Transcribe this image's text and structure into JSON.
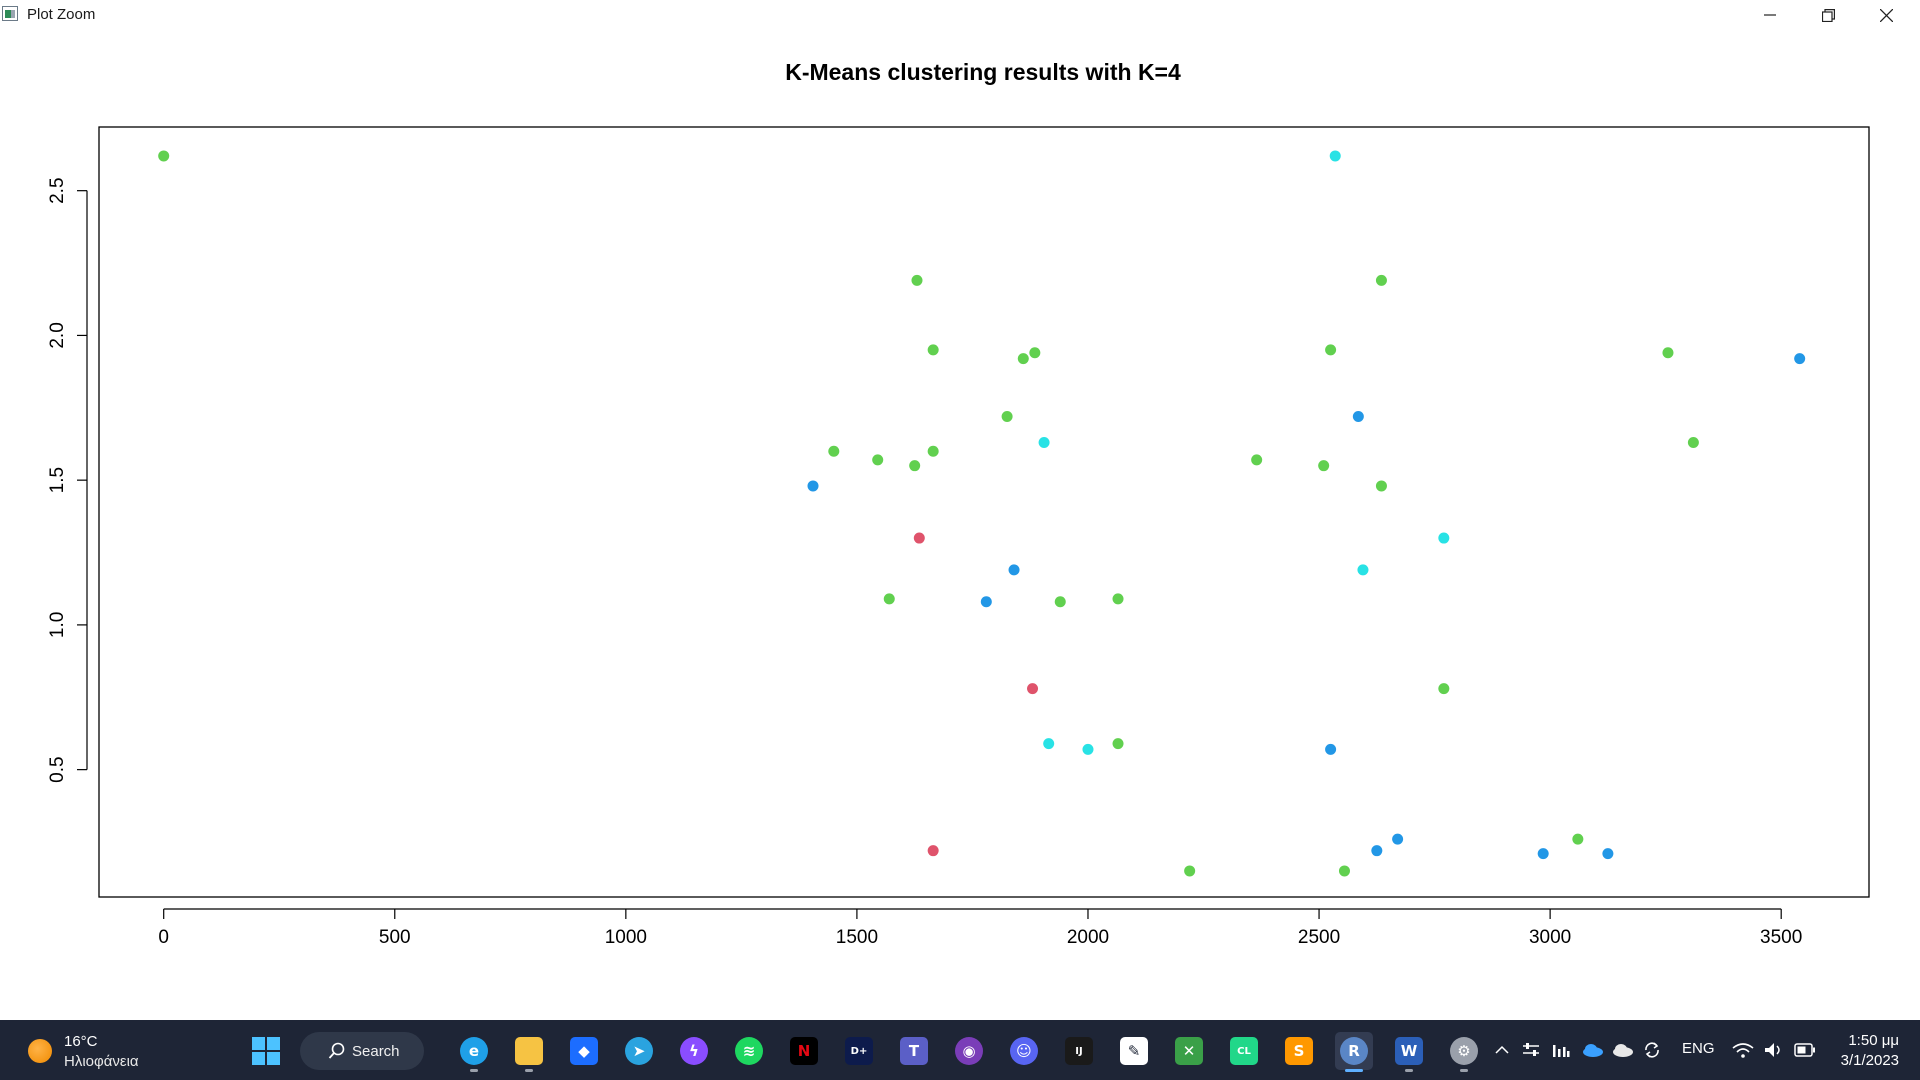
{
  "window": {
    "title": "Plot Zoom"
  },
  "chart_data": {
    "type": "scatter",
    "title": "K-Means clustering results with K=4",
    "xlabel": "",
    "ylabel": "",
    "xlim": [
      -140,
      3690
    ],
    "ylim": [
      0.06,
      2.72
    ],
    "xticks": [
      0,
      500,
      1000,
      1500,
      2000,
      2500,
      3000,
      3500
    ],
    "yticks": [
      0.5,
      1.0,
      1.5,
      2.0,
      2.5
    ],
    "xtick_labels": [
      "0",
      "500",
      "1000",
      "1500",
      "2000",
      "2500",
      "3000",
      "3500"
    ],
    "ytick_labels": [
      "0.5",
      "1.0",
      "1.5",
      "2.0",
      "2.5"
    ],
    "grid": false,
    "series": [
      {
        "cluster": 1,
        "color": "#df536b",
        "points": [
          [
            1635,
            1.3
          ],
          [
            1880,
            0.78
          ],
          [
            1665,
            0.22
          ]
        ]
      },
      {
        "cluster": 2,
        "color": "#61d04f",
        "points": [
          [
            0,
            2.62
          ],
          [
            1630,
            2.19
          ],
          [
            1665,
            1.95
          ],
          [
            1860,
            1.92
          ],
          [
            1885,
            1.94
          ],
          [
            1825,
            1.72
          ],
          [
            1450,
            1.6
          ],
          [
            1545,
            1.57
          ],
          [
            1625,
            1.55
          ],
          [
            1665,
            1.6
          ],
          [
            1570,
            1.09
          ],
          [
            1940,
            1.08
          ],
          [
            2065,
            1.09
          ],
          [
            2065,
            0.59
          ],
          [
            2220,
            0.15
          ],
          [
            2365,
            1.57
          ],
          [
            2510,
            1.55
          ],
          [
            2525,
            1.95
          ],
          [
            2635,
            2.19
          ],
          [
            2635,
            1.48
          ],
          [
            2555,
            0.15
          ],
          [
            2770,
            0.78
          ],
          [
            3060,
            0.26
          ],
          [
            3255,
            1.94
          ],
          [
            3310,
            1.63
          ]
        ]
      },
      {
        "cluster": 3,
        "color": "#2297e6",
        "points": [
          [
            1405,
            1.48
          ],
          [
            1840,
            1.19
          ],
          [
            1780,
            1.08
          ],
          [
            2585,
            1.72
          ],
          [
            2525,
            0.57
          ],
          [
            2625,
            0.22
          ],
          [
            2670,
            0.26
          ],
          [
            2985,
            0.21
          ],
          [
            3125,
            0.21
          ],
          [
            3540,
            1.92
          ]
        ]
      },
      {
        "cluster": 4,
        "color": "#28e2e5",
        "points": [
          [
            2535,
            2.62
          ],
          [
            1905,
            1.63
          ],
          [
            2595,
            1.19
          ],
          [
            2770,
            1.3
          ],
          [
            1915,
            0.59
          ],
          [
            2000,
            0.57
          ]
        ]
      }
    ]
  },
  "taskbar": {
    "weather": {
      "temp": "16°C",
      "condition": "Ηλιοφάνεια"
    },
    "search_label": "Search",
    "apps": [
      {
        "name": "edge",
        "color": "#1fa0e8",
        "glyph": "e"
      },
      {
        "name": "file-explorer",
        "color": "#f6c343",
        "glyph": ""
      },
      {
        "name": "dropbox",
        "color": "#1c6dff",
        "glyph": "◆"
      },
      {
        "name": "telegram",
        "color": "#2aa3df",
        "glyph": "➤"
      },
      {
        "name": "messenger",
        "color": "#8a4dff",
        "glyph": "ϟ"
      },
      {
        "name": "spotify",
        "color": "#1ed760",
        "glyph": "≋"
      },
      {
        "name": "netflix",
        "color": "#000000",
        "glyph": "N"
      },
      {
        "name": "disney-plus",
        "color": "#0d1b4c",
        "glyph": "D+"
      },
      {
        "name": "teams",
        "color": "#5b5fc7",
        "glyph": "T"
      },
      {
        "name": "github",
        "color": "#7a3db8",
        "glyph": "◉"
      },
      {
        "name": "discord",
        "color": "#5865f2",
        "glyph": "☺"
      },
      {
        "name": "intellij",
        "color": "#1a1a1a",
        "glyph": "IJ"
      },
      {
        "name": "draw",
        "color": "#ffffff",
        "glyph": "✎"
      },
      {
        "name": "tool-app",
        "color": "#3aa048",
        "glyph": "✕"
      },
      {
        "name": "clion",
        "color": "#21d789",
        "glyph": "CL"
      },
      {
        "name": "sublime-text",
        "color": "#ff9800",
        "glyph": "S"
      },
      {
        "name": "r-gui",
        "color": "#5a86c6",
        "glyph": "R"
      },
      {
        "name": "word",
        "color": "#2b5fb8",
        "glyph": "W"
      },
      {
        "name": "settings",
        "color": "#9aa0ab",
        "glyph": "⚙"
      }
    ],
    "language": "ENG",
    "time": "1:50 μμ",
    "date": "3/1/2023"
  }
}
